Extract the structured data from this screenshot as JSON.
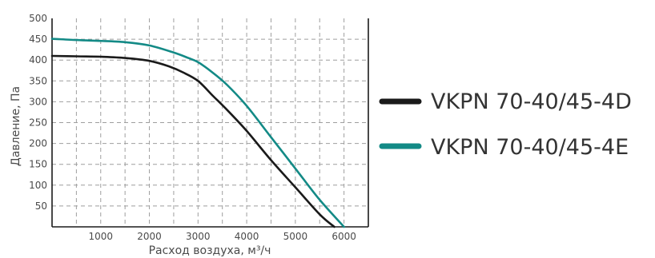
{
  "chart_data": {
    "type": "line",
    "xlabel": "Расход воздуха, м³/ч",
    "ylabel": "Давление, Па",
    "xlim": [
      0,
      6500
    ],
    "ylim": [
      0,
      500
    ],
    "x_ticks": [
      1000,
      2000,
      3000,
      4000,
      5000,
      6000
    ],
    "y_ticks": [
      50,
      100,
      150,
      200,
      250,
      300,
      350,
      400,
      450,
      500
    ],
    "x_grid": [
      500,
      1000,
      1500,
      2000,
      2500,
      3000,
      3500,
      4000,
      4500,
      5000,
      5500,
      6000,
      6500
    ],
    "y_grid": [
      50,
      100,
      150,
      200,
      250,
      300,
      350,
      400,
      450
    ],
    "grid": true,
    "legend_position": "right",
    "series": [
      {
        "name": "VKPN 70-40/45-4D",
        "color": "#1a1a1a",
        "x": [
          0,
          500,
          1000,
          1500,
          2000,
          2400,
          2700,
          3000,
          3300,
          3600,
          4000,
          4500,
          5000,
          5500,
          5800
        ],
        "y": [
          410,
          409,
          408,
          405,
          398,
          385,
          370,
          350,
          315,
          280,
          230,
          160,
          95,
          30,
          0
        ]
      },
      {
        "name": "VKPN 70-40/45-4E",
        "color": "#138a86",
        "x": [
          0,
          500,
          1000,
          1500,
          2000,
          2500,
          2800,
          3000,
          3300,
          3600,
          4000,
          4500,
          5000,
          5500,
          6000
        ],
        "y": [
          451,
          448,
          446,
          443,
          435,
          418,
          405,
          395,
          370,
          340,
          290,
          215,
          140,
          65,
          0
        ]
      }
    ]
  }
}
